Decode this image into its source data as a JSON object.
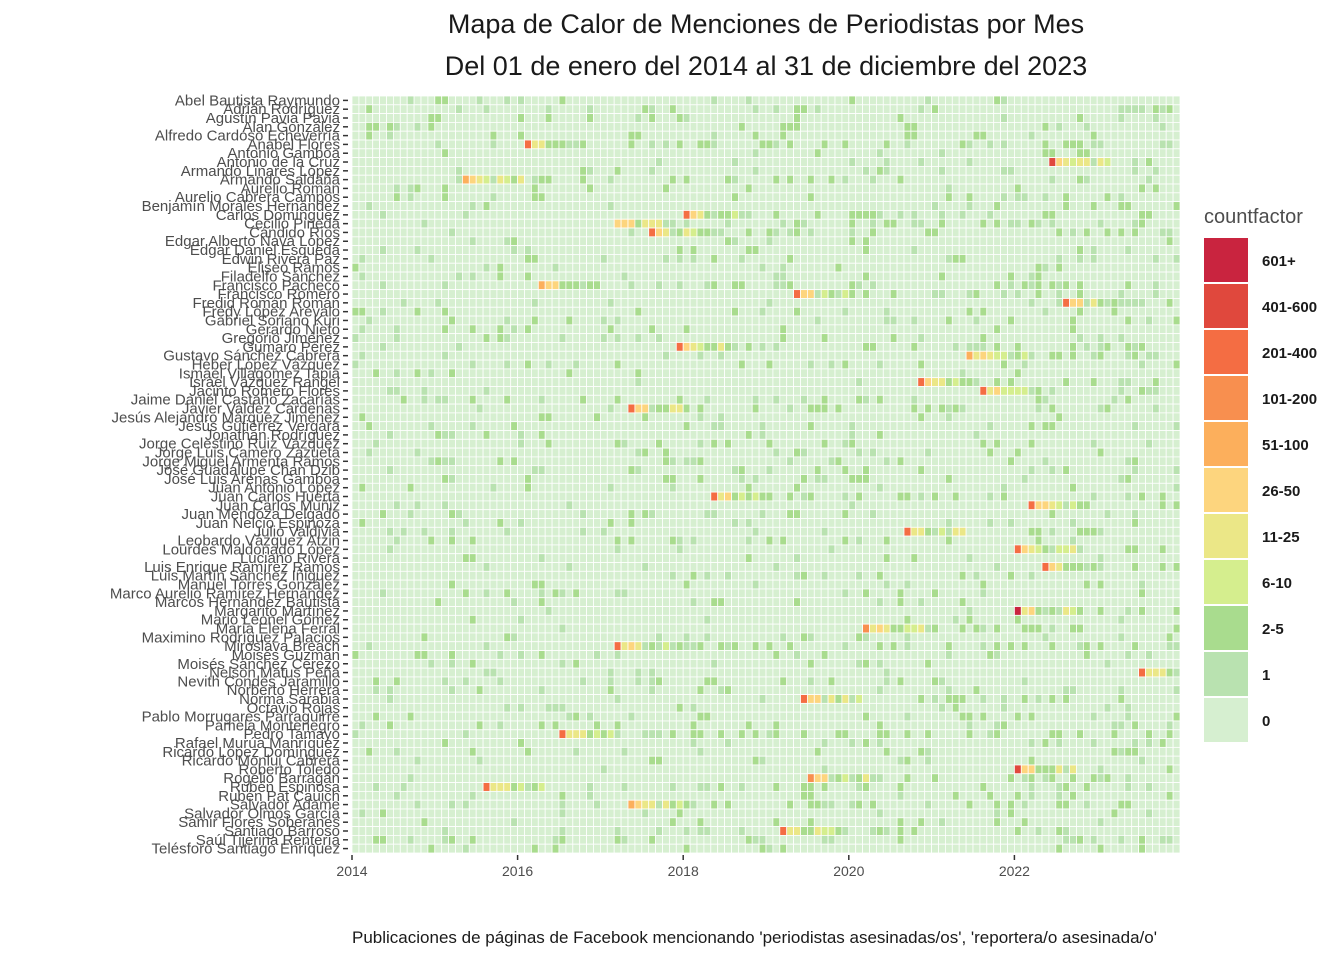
{
  "chart_data": {
    "type": "heatmap",
    "title": [
      "Mapa de Calor de Menciones de Periodistas por Mes",
      "Del 01 de enero del 2014 al 31 de diciembre del 2023"
    ],
    "caption": "Publicaciones de páginas de Facebook mencionando 'periodistas asesinadas/os', 'reportera/o asesinada/o'",
    "x_ticks": [
      "2014",
      "2016",
      "2018",
      "2020",
      "2022"
    ],
    "x_range": [
      "2014-01",
      "2023-12"
    ],
    "legend": {
      "title": "countfactor",
      "position": "right",
      "categories": [
        "601+",
        "401-600",
        "201-400",
        "101-200",
        "51-100",
        "26-50",
        "11-25",
        "6-10",
        "2-5",
        "1",
        "0"
      ],
      "colors": [
        "#c9243f",
        "#e0483d",
        "#f46d43",
        "#f88f4f",
        "#fcaf5c",
        "#fdd57e",
        "#ebe787",
        "#d5ee8e",
        "#a9dc8e",
        "#b9e2b0",
        "#d6efd0"
      ]
    },
    "journalists": [
      "Abel Bautista Raymundo",
      "Adrián Rodríguez",
      "Agustín Pavia Pavia",
      "Alan González",
      "Alfredo Cardoso Echeverría",
      "Anabel Flores",
      "Antonio Gamboa",
      "Antonio de la Cruz",
      "Armando Linares López",
      "Armando Saldaña",
      "Aurelio Román",
      "Aurelio Cabrera Campos",
      "Benjamín Morales Hernández",
      "Carlos Domínguez",
      "Cecilio Pineda",
      "Cándido Ríos",
      "Edgar Alberto Nava López",
      "Edgar Daniel Esqueda",
      "Edwin Rivera Paz",
      "Eliseo Ramos",
      "Filadelfo Sánchez",
      "Francisco Pacheco",
      "Francisco Romero",
      "Fredid Román Román",
      "Fredy López Arévalo",
      "Gabriel Soriano Kuri",
      "Gerardo Nieto",
      "Gregorio Jiménez",
      "Gumaro Pérez",
      "Gustavo Sánchez Cabrera",
      "Heber López Vázquez",
      "Ismael Villagómez Tapia",
      "Israel Vázquez Rangel",
      "Jacinto Romero Flores",
      "Jaime Daniel Castaño Zacarías",
      "Javier Valdez Cárdenas",
      "Jesús Alejandro Márquez Jiménez",
      "Jesús Gutiérrez Vergara",
      "Jonathan Rodríguez",
      "Jorge Celestino Ruiz Vázquez",
      "Jorge Luis Camero Zazueta",
      "Jorge Miguel Armenta Ramos",
      "José Guadalupe Chan Dzib",
      "José Luis Arenas Gamboa",
      "Juan Antonio López",
      "Juan Carlos Huerta",
      "Juan Carlos Muñiz",
      "Juan Mendoza Delgado",
      "Juan Nelcio Espinoza",
      "Julio Valdivia",
      "Leobardo Vázquez Atzin",
      "Lourdes Maldonado López",
      "Luciano Rivera",
      "Luis Enrique Ramírez Ramos",
      "Luis Martín Sánchez Iñiguez",
      "Manuel Torres González",
      "Marco Aurelio Ramírez Hernández",
      "Marcos Hernández Bautista",
      "Margarito Martínez",
      "Mario Leonel Gómez",
      "María Elena Ferral",
      "Maximino Rodríguez Palacios",
      "Miroslava Breach",
      "Moisés Guzmán",
      "Moisés Sánchez Cerezo",
      "Nelson Matus Peña",
      "Nevith Condés Jaramillo",
      "Norberto Herrera",
      "Norma Sarabia",
      "Octavio Rojas",
      "Pablo Morrugares Parraguirre",
      "Pamela Montenegro",
      "Pedro Tamayo",
      "Rafael Murúa Manríquez",
      "Ricardo López Domínguez",
      "Ricardo Monlui Cabrera",
      "Roberto Toledo",
      "Rogelio Barragán",
      "Rubén Espinosa",
      "Rubén Pat Cauich",
      "Salvador Adame",
      "Salvador Olmos García",
      "Samir Flores Soberanes",
      "Santiago Barroso",
      "Saúl Tijerina Rentería",
      "Telésforo Santiago Enríquez"
    ],
    "peaks": [
      {
        "journalist": "Anabel Flores",
        "month": "2016-02",
        "category": "201-400"
      },
      {
        "journalist": "Antonio de la Cruz",
        "month": "2022-06",
        "category": "401-600"
      },
      {
        "journalist": "Armando Saldaña",
        "month": "2015-05",
        "category": "51-100"
      },
      {
        "journalist": "Carlos Domínguez",
        "month": "2018-01",
        "category": "201-400"
      },
      {
        "journalist": "Cecilio Pineda",
        "month": "2017-03",
        "category": "26-50"
      },
      {
        "journalist": "Cándido Ríos",
        "month": "2017-08",
        "category": "201-400"
      },
      {
        "journalist": "Francisco Pacheco",
        "month": "2016-04",
        "category": "51-100"
      },
      {
        "journalist": "Francisco Romero",
        "month": "2019-05",
        "category": "201-400"
      },
      {
        "journalist": "Fredid Román Román",
        "month": "2022-08",
        "category": "201-400"
      },
      {
        "journalist": "Gumaro Pérez",
        "month": "2017-12",
        "category": "201-400"
      },
      {
        "journalist": "Gustavo Sánchez Cabrera",
        "month": "2021-06",
        "category": "51-100"
      },
      {
        "journalist": "Israel Vázquez Rangel",
        "month": "2020-11",
        "category": "201-400"
      },
      {
        "journalist": "Jacinto Romero Flores",
        "month": "2021-08",
        "category": "201-400"
      },
      {
        "journalist": "Javier Valdez Cárdenas",
        "month": "2017-05",
        "category": "201-400"
      },
      {
        "journalist": "Juan Carlos Huerta",
        "month": "2018-05",
        "category": "201-400"
      },
      {
        "journalist": "Juan Carlos Muñiz",
        "month": "2022-03",
        "category": "201-400"
      },
      {
        "journalist": "Julio Valdivia",
        "month": "2020-09",
        "category": "201-400"
      },
      {
        "journalist": "Lourdes Maldonado López",
        "month": "2022-01",
        "category": "201-400"
      },
      {
        "journalist": "Luis Enrique Ramírez Ramos",
        "month": "2022-05",
        "category": "201-400"
      },
      {
        "journalist": "Margarito Martínez",
        "month": "2022-01",
        "category": "601+"
      },
      {
        "journalist": "María Elena Ferral",
        "month": "2020-03",
        "category": "101-200"
      },
      {
        "journalist": "Miroslava Breach",
        "month": "2017-03",
        "category": "201-400"
      },
      {
        "journalist": "Nelson Matus Peña",
        "month": "2023-07",
        "category": "201-400"
      },
      {
        "journalist": "Norma Sarabia",
        "month": "2019-06",
        "category": "201-400"
      },
      {
        "journalist": "Pedro Tamayo",
        "month": "2016-07",
        "category": "201-400"
      },
      {
        "journalist": "Roberto Toledo",
        "month": "2022-01",
        "category": "401-600"
      },
      {
        "journalist": "Rogelio Barragán",
        "month": "2019-07",
        "category": "101-200"
      },
      {
        "journalist": "Rubén Espinosa",
        "month": "2015-08",
        "category": "201-400"
      },
      {
        "journalist": "Salvador Adame",
        "month": "2017-05",
        "category": "51-100"
      },
      {
        "journalist": "Santiago Barroso",
        "month": "2019-03",
        "category": "201-400"
      }
    ]
  }
}
